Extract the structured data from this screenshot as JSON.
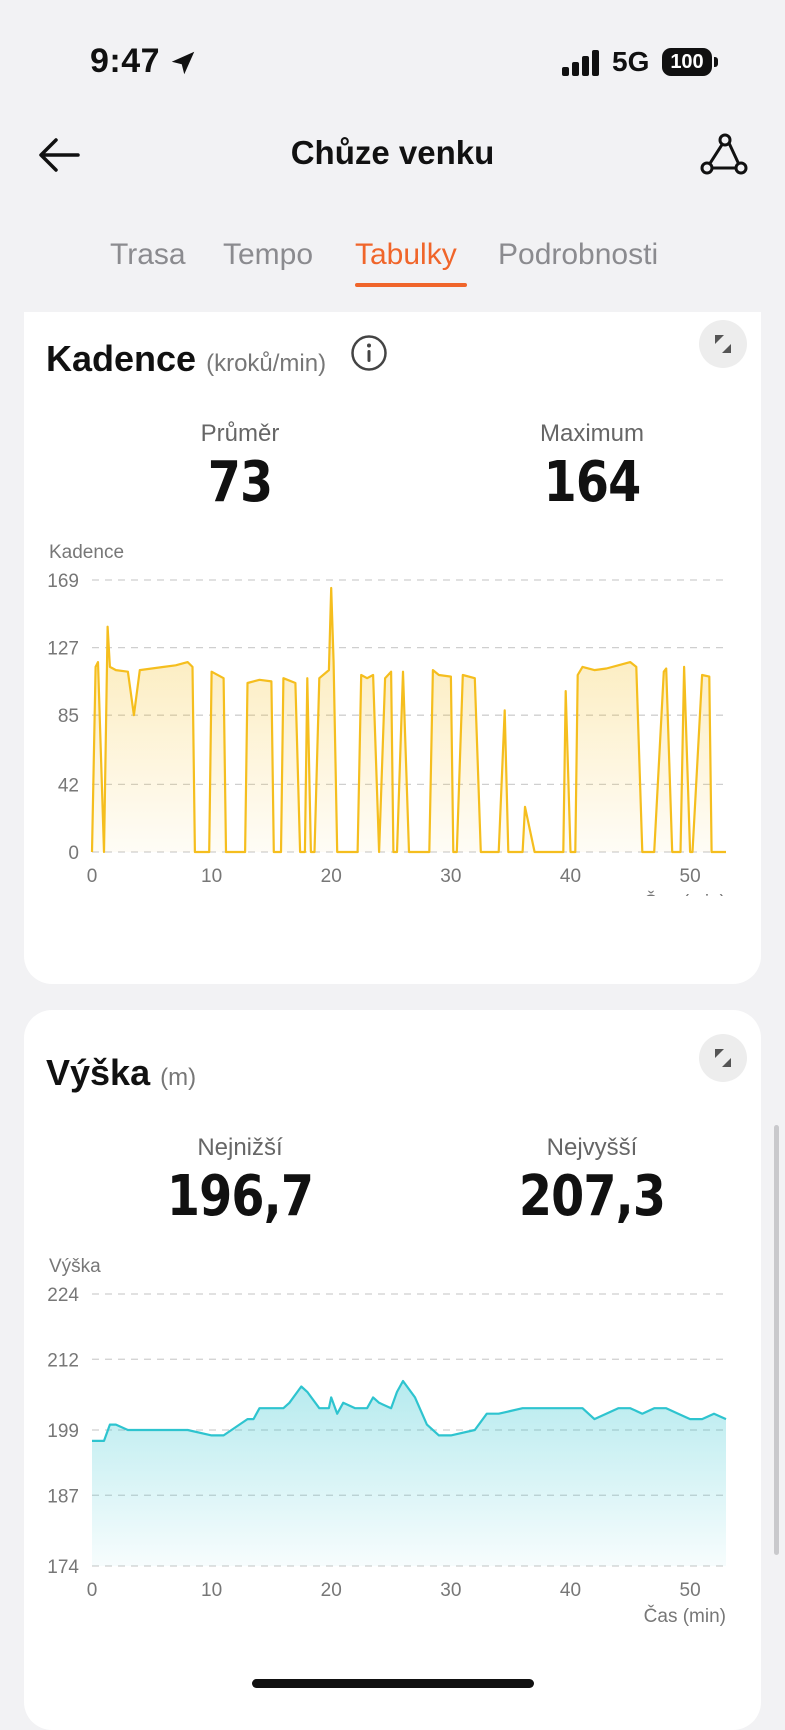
{
  "status_bar": {
    "time": "9:47",
    "network": "5G",
    "battery": "100"
  },
  "header": {
    "title": "Chůze venku"
  },
  "tabs": [
    {
      "label": "Trasa",
      "active": false
    },
    {
      "label": "Tempo",
      "active": false
    },
    {
      "label": "Tabulky",
      "active": true
    },
    {
      "label": "Podrobnosti",
      "active": false
    }
  ],
  "colors": {
    "accent": "#f0652a",
    "cadence": "#f5be1e",
    "altitude": "#2ec4cf"
  },
  "cadence": {
    "title": "Kadence",
    "unit": "(kroků/min)",
    "avg_label": "Průměr",
    "avg_value": "73",
    "max_label": "Maximum",
    "max_value": "164"
  },
  "altitude": {
    "title": "Výška",
    "unit": "(m)",
    "min_label": "Nejnižší",
    "min_value": "196,7",
    "max_label": "Nejvyšší",
    "max_value": "207,3"
  },
  "chart_data": [
    {
      "type": "line",
      "ylabel": "Kadence",
      "xlabel": "Čas (min)",
      "yticks": [
        0,
        42,
        85,
        127,
        169
      ],
      "xticks": [
        0,
        10,
        20,
        30,
        40,
        50
      ],
      "xlim": [
        0,
        53
      ],
      "ylim": [
        0,
        169
      ],
      "grid": true,
      "x": [
        0,
        0.3,
        0.5,
        1,
        1.3,
        1.5,
        2,
        3,
        3.5,
        4,
        5,
        6,
        7,
        8,
        8.4,
        8.6,
        9.8,
        10,
        11,
        11.2,
        11.6,
        12.8,
        13,
        14,
        15,
        15.2,
        15.4,
        15.8,
        16,
        17,
        17.4,
        17.8,
        18,
        18.3,
        18.6,
        19,
        19.8,
        20,
        20.2,
        20.5,
        20.8,
        22.2,
        22.5,
        23,
        23.5,
        24,
        24.5,
        25,
        25.2,
        25.5,
        26,
        26.5,
        27,
        27.2,
        28.2,
        28.5,
        29,
        30,
        30.2,
        30.5,
        31,
        32,
        32.5,
        33.5,
        34,
        34.5,
        34.8,
        35,
        35.5,
        36,
        36.2,
        37,
        39,
        39.4,
        39.6,
        40,
        40.4,
        40.6,
        41,
        42,
        43,
        44,
        45,
        45.5,
        46,
        47,
        47.8,
        48,
        48.5,
        48.8,
        49.2,
        49.5,
        50,
        50.2,
        51,
        51.6,
        51.8,
        52.2,
        53
      ],
      "y": [
        0,
        115,
        118,
        0,
        140,
        115,
        113,
        112,
        85,
        113,
        114,
        115,
        116,
        118,
        115,
        0,
        0,
        112,
        108,
        0,
        0,
        0,
        105,
        107,
        106,
        0,
        0,
        0,
        108,
        105,
        0,
        0,
        108,
        0,
        0,
        108,
        113,
        164,
        118,
        0,
        0,
        0,
        110,
        108,
        110,
        0,
        108,
        112,
        0,
        0,
        112,
        0,
        0,
        0,
        0,
        113,
        110,
        109,
        0,
        0,
        110,
        108,
        0,
        0,
        0,
        88,
        0,
        0,
        0,
        0,
        28,
        0,
        0,
        0,
        100,
        0,
        0,
        110,
        115,
        113,
        114,
        116,
        118,
        115,
        0,
        0,
        112,
        114,
        0,
        0,
        0,
        115,
        0,
        0,
        110,
        109,
        0,
        0,
        0
      ]
    },
    {
      "type": "area",
      "ylabel": "Výška",
      "xlabel": "Čas (min)",
      "yticks": [
        174,
        187,
        199,
        212,
        224
      ],
      "xticks": [
        0,
        10,
        20,
        30,
        40,
        50
      ],
      "xlim": [
        0,
        53
      ],
      "ylim": [
        174,
        224
      ],
      "grid": true,
      "x": [
        0,
        1,
        1.5,
        2,
        3,
        5,
        7,
        8,
        10,
        11,
        13,
        13.5,
        14,
        16,
        16.5,
        17.5,
        18,
        19,
        19.8,
        20,
        20.5,
        21,
        22,
        23,
        23.5,
        24,
        25,
        25.5,
        26,
        27,
        28,
        29,
        30,
        32,
        33,
        34,
        36,
        38,
        41,
        42,
        44,
        45,
        46,
        47,
        48,
        49,
        50,
        51,
        52,
        53
      ],
      "y": [
        197,
        197,
        200,
        200,
        199,
        199,
        199,
        199,
        198,
        198,
        201,
        201,
        203,
        203,
        204,
        207,
        206,
        203,
        203,
        205,
        202,
        204,
        203,
        203,
        205,
        204,
        203,
        206,
        208,
        205,
        200,
        198,
        198,
        199,
        202,
        202,
        203,
        203,
        203,
        201,
        203,
        203,
        202,
        203,
        203,
        202,
        201,
        201,
        202,
        201
      ]
    }
  ]
}
